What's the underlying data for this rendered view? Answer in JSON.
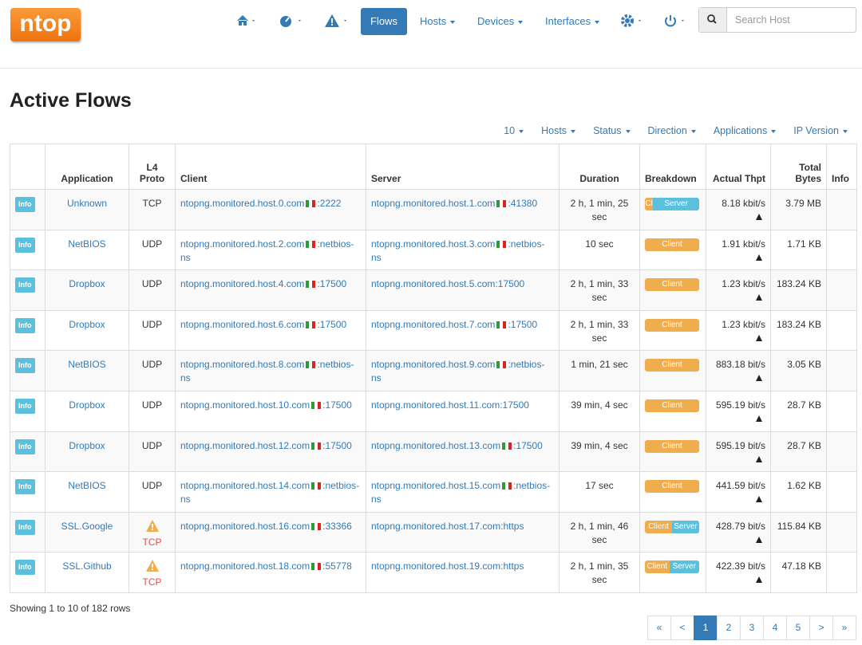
{
  "logo": "ntop",
  "nav": {
    "items": [
      "Flows",
      "Hosts",
      "Devices",
      "Interfaces"
    ],
    "active": "Flows",
    "search_placeholder": "Search Host"
  },
  "title": "Active Flows",
  "filters": [
    "10",
    "Hosts",
    "Status",
    "Direction",
    "Applications",
    "IP Version"
  ],
  "table": {
    "headers": [
      "Application",
      "L4 Proto",
      "Client",
      "Server",
      "Duration",
      "Breakdown",
      "Actual Thpt",
      "Total Bytes",
      "Info"
    ],
    "rows": [
      {
        "badge": "Info",
        "application": "Unknown",
        "proto": "TCP",
        "warning": false,
        "client": {
          "host": "ntopng.monitored.host.0.com",
          "flag": true,
          "port": ":2222"
        },
        "server": {
          "host": "ntopng.monitored.host.1.com",
          "flag": true,
          "port": ":41380"
        },
        "duration": "2 h, 1 min, 25 sec",
        "breakdown": [
          {
            "label": "Cl",
            "share": 15
          },
          {
            "label": "Server",
            "share": 85
          }
        ],
        "thpt": "8.18 kbit/s",
        "bytes": "3.79 MB"
      },
      {
        "badge": "Info",
        "application": "NetBIOS",
        "proto": "UDP",
        "warning": false,
        "client": {
          "host": "ntopng.monitored.host.2.com",
          "flag": true,
          "port": ":netbios-ns"
        },
        "server": {
          "host": "ntopng.monitored.host.3.com",
          "flag": true,
          "port": ":netbios-ns"
        },
        "duration": "10 sec",
        "breakdown": [
          {
            "label": "Client",
            "share": 100
          }
        ],
        "thpt": "1.91 kbit/s",
        "bytes": "1.71 KB"
      },
      {
        "badge": "Info",
        "application": "Dropbox",
        "proto": "UDP",
        "warning": false,
        "client": {
          "host": "ntopng.monitored.host.4.com",
          "flag": true,
          "port": ":17500"
        },
        "server": {
          "host": "ntopng.monitored.host.5.com",
          "flag": false,
          "port": ":17500"
        },
        "duration": "2 h, 1 min, 33 sec",
        "breakdown": [
          {
            "label": "Client",
            "share": 100
          }
        ],
        "thpt": "1.23 kbit/s",
        "bytes": "183.24 KB"
      },
      {
        "badge": "Info",
        "application": "Dropbox",
        "proto": "UDP",
        "warning": false,
        "client": {
          "host": "ntopng.monitored.host.6.com",
          "flag": true,
          "port": ":17500"
        },
        "server": {
          "host": "ntopng.monitored.host.7.com",
          "flag": true,
          "port": ":17500"
        },
        "duration": "2 h, 1 min, 33 sec",
        "breakdown": [
          {
            "label": "Client",
            "share": 100
          }
        ],
        "thpt": "1.23 kbit/s",
        "bytes": "183.24 KB"
      },
      {
        "badge": "Info",
        "application": "NetBIOS",
        "proto": "UDP",
        "warning": false,
        "client": {
          "host": "ntopng.monitored.host.8.com",
          "flag": true,
          "port": ":netbios-ns"
        },
        "server": {
          "host": "ntopng.monitored.host.9.com",
          "flag": true,
          "port": ":netbios-ns"
        },
        "duration": "1 min, 21 sec",
        "breakdown": [
          {
            "label": "Client",
            "share": 100
          }
        ],
        "thpt": "883.18 bit/s",
        "bytes": "3.05 KB"
      },
      {
        "badge": "Info",
        "application": "Dropbox",
        "proto": "UDP",
        "warning": false,
        "client": {
          "host": "ntopng.monitored.host.10.com",
          "flag": true,
          "port": ":17500"
        },
        "server": {
          "host": "ntopng.monitored.host.11.com",
          "flag": false,
          "port": ":17500"
        },
        "duration": "39 min, 4 sec",
        "breakdown": [
          {
            "label": "Client",
            "share": 100
          }
        ],
        "thpt": "595.19 bit/s",
        "bytes": "28.7 KB"
      },
      {
        "badge": "Info",
        "application": "Dropbox",
        "proto": "UDP",
        "warning": false,
        "client": {
          "host": "ntopng.monitored.host.12.com",
          "flag": true,
          "port": ":17500"
        },
        "server": {
          "host": "ntopng.monitored.host.13.com",
          "flag": true,
          "port": ":17500"
        },
        "duration": "39 min, 4 sec",
        "breakdown": [
          {
            "label": "Client",
            "share": 100
          }
        ],
        "thpt": "595.19 bit/s",
        "bytes": "28.7 KB"
      },
      {
        "badge": "Info",
        "application": "NetBIOS",
        "proto": "UDP",
        "warning": false,
        "client": {
          "host": "ntopng.monitored.host.14.com",
          "flag": true,
          "port": ":netbios-ns"
        },
        "server": {
          "host": "ntopng.monitored.host.15.com",
          "flag": true,
          "port": ":netbios-ns"
        },
        "duration": "17 sec",
        "breakdown": [
          {
            "label": "Client",
            "share": 100
          }
        ],
        "thpt": "441.59 bit/s",
        "bytes": "1.62 KB"
      },
      {
        "badge": "Info",
        "application": "SSL.Google",
        "proto": "TCP",
        "warning": true,
        "client": {
          "host": "ntopng.monitored.host.16.com",
          "flag": true,
          "port": ":33366"
        },
        "server": {
          "host": "ntopng.monitored.host.17.com",
          "flag": false,
          "port": ":https"
        },
        "duration": "2 h, 1 min, 46 sec",
        "breakdown": [
          {
            "label": "Client",
            "share": 50
          },
          {
            "label": "Server",
            "share": 50
          }
        ],
        "thpt": "428.79 bit/s",
        "bytes": "115.84 KB"
      },
      {
        "badge": "Info",
        "application": "SSL.Github",
        "proto": "TCP",
        "warning": true,
        "client": {
          "host": "ntopng.monitored.host.18.com",
          "flag": true,
          "port": ":55778"
        },
        "server": {
          "host": "ntopng.monitored.host.19.com",
          "flag": false,
          "port": ":https"
        },
        "duration": "2 h, 1 min, 35 sec",
        "breakdown": [
          {
            "label": "Client",
            "share": 45
          },
          {
            "label": "Server",
            "share": 55
          }
        ],
        "thpt": "422.39 bit/s",
        "bytes": "47.18 KB"
      }
    ]
  },
  "footer": "Showing 1 to 10 of 182 rows",
  "pagination": [
    "«",
    "<",
    "1",
    "2",
    "3",
    "4",
    "5",
    ">",
    "»"
  ],
  "pagination_active": "1"
}
